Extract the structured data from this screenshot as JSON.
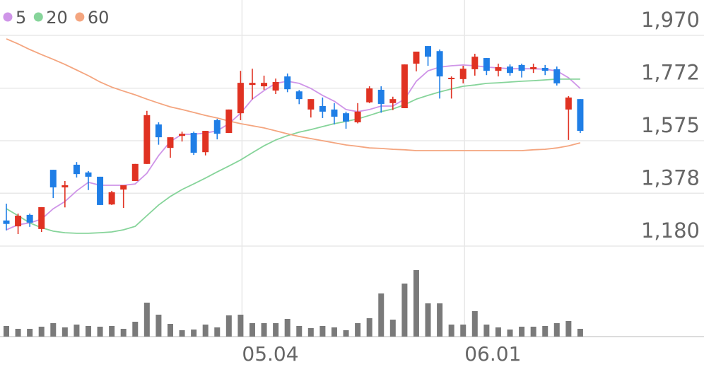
{
  "chart_data": {
    "type": "candlestick",
    "categories": [
      null,
      null,
      null,
      null,
      null,
      null,
      null,
      null,
      null,
      null,
      null,
      null,
      null,
      null,
      null,
      null,
      null,
      null,
      null,
      null,
      "05.04",
      null,
      null,
      null,
      null,
      null,
      null,
      null,
      null,
      null,
      null,
      null,
      null,
      null,
      null,
      null,
      null,
      null,
      null,
      "06.01",
      null,
      null,
      null,
      null,
      null,
      null,
      null,
      null,
      null,
      null
    ],
    "open": [
      1276,
      1254,
      1297,
      1244,
      1466,
      1400,
      1485,
      1456,
      1440,
      1336,
      1392,
      1424,
      1488,
      1636,
      1548,
      1593,
      1604,
      1532,
      1652,
      1604,
      1678,
      1784,
      1779,
      1763,
      1816,
      1760,
      1692,
      1705,
      1692,
      1678,
      1644,
      1719,
      1766,
      1716,
      1697,
      1864,
      1930,
      1911,
      1806,
      1806,
      1843,
      1885,
      1837,
      1853,
      1859,
      1843,
      1848,
      1843,
      1692,
      1731
    ],
    "high": [
      1339,
      1302,
      1302,
      1326,
      1466,
      1424,
      1495,
      1461,
      1440,
      1387,
      1408,
      1488,
      1687,
      1644,
      1588,
      1609,
      1609,
      1612,
      1657,
      1692,
      1837,
      1845,
      1819,
      1808,
      1827,
      1765,
      1731,
      1737,
      1716,
      1684,
      1716,
      1779,
      1779,
      1740,
      1861,
      1909,
      1930,
      1917,
      1816,
      1856,
      1901,
      1885,
      1864,
      1861,
      1864,
      1864,
      1859,
      1853,
      1742,
      1731
    ],
    "low": [
      1239,
      1225,
      1252,
      1233,
      1360,
      1325,
      1437,
      1390,
      1334,
      1334,
      1323,
      1424,
      1488,
      1560,
      1511,
      1572,
      1522,
      1520,
      1580,
      1604,
      1652,
      1730,
      1766,
      1750,
      1757,
      1712,
      1662,
      1660,
      1636,
      1620,
      1640,
      1716,
      1680,
      1690,
      1697,
      1835,
      1856,
      1733,
      1733,
      1790,
      1819,
      1821,
      1816,
      1819,
      1812,
      1829,
      1821,
      1782,
      1578,
      1604
    ],
    "close": [
      1263,
      1294,
      1268,
      1326,
      1400,
      1408,
      1450,
      1440,
      1334,
      1382,
      1408,
      1488,
      1671,
      1588,
      1588,
      1601,
      1530,
      1612,
      1601,
      1692,
      1792,
      1792,
      1792,
      1795,
      1768,
      1731,
      1731,
      1684,
      1665,
      1647,
      1684,
      1771,
      1713,
      1731,
      1861,
      1909,
      1890,
      1816,
      1811,
      1845,
      1890,
      1837,
      1851,
      1829,
      1837,
      1851,
      1837,
      1790,
      1737,
      1612
    ],
    "up_color": "#e03222",
    "down_color": "#1f7ee6",
    "series": [
      {
        "name": "5",
        "color": "#cf95e8",
        "values": [
          1241,
          1260,
          1267,
          1281,
          1320,
          1347,
          1387,
          1419,
          1408,
          1408,
          1408,
          1413,
          1453,
          1519,
          1572,
          1599,
          1599,
          1604,
          1612,
          1639,
          1678,
          1731,
          1763,
          1790,
          1798,
          1790,
          1771,
          1745,
          1723,
          1692,
          1684,
          1692,
          1705,
          1705,
          1731,
          1798,
          1837,
          1851,
          1856,
          1859,
          1856,
          1851,
          1848,
          1845,
          1845,
          1845,
          1843,
          1837,
          1811,
          1771
        ]
      },
      {
        "name": "20",
        "color": "#86d49a",
        "values": [
          1320,
          1294,
          1267,
          1249,
          1236,
          1230,
          1228,
          1228,
          1230,
          1233,
          1241,
          1254,
          1294,
          1334,
          1366,
          1392,
          1413,
          1435,
          1458,
          1480,
          1503,
          1530,
          1556,
          1578,
          1594,
          1607,
          1617,
          1628,
          1639,
          1647,
          1657,
          1670,
          1684,
          1694,
          1710,
          1731,
          1745,
          1758,
          1769,
          1779,
          1784,
          1790,
          1792,
          1795,
          1798,
          1800,
          1803,
          1806,
          1806,
          1806
        ]
      },
      {
        "name": "60",
        "color": "#f4a57f",
        "values": [
          1957,
          1938,
          1917,
          1898,
          1880,
          1861,
          1840,
          1819,
          1795,
          1776,
          1761,
          1747,
          1731,
          1716,
          1702,
          1692,
          1681,
          1670,
          1660,
          1649,
          1639,
          1631,
          1623,
          1612,
          1601,
          1591,
          1583,
          1575,
          1567,
          1559,
          1554,
          1548,
          1546,
          1543,
          1541,
          1538,
          1538,
          1538,
          1538,
          1538,
          1538,
          1538,
          1538,
          1538,
          1538,
          1541,
          1543,
          1548,
          1556,
          1567
        ]
      }
    ],
    "volume": {
      "color": "#7a7a7a",
      "ylim": [
        0,
        128
      ],
      "values": [
        15,
        11,
        11,
        14,
        19,
        13,
        17,
        15,
        14,
        15,
        11,
        21,
        48,
        31,
        18,
        9,
        10,
        17,
        13,
        30,
        31,
        19,
        19,
        19,
        25,
        15,
        12,
        15,
        13,
        9,
        19,
        26,
        61,
        24,
        75,
        94,
        47,
        47,
        17,
        17,
        36,
        17,
        13,
        10,
        14,
        14,
        15,
        19,
        22,
        11
      ]
    },
    "ylim": [
      1180,
      1970
    ],
    "yticks": [
      {
        "value": 1180,
        "label": "1,180"
      },
      {
        "value": 1378,
        "label": "1,378"
      },
      {
        "value": 1575,
        "label": "1,575"
      },
      {
        "value": 1772,
        "label": "1,772"
      },
      {
        "value": 1970,
        "label": "1,970"
      }
    ],
    "grid": true
  }
}
